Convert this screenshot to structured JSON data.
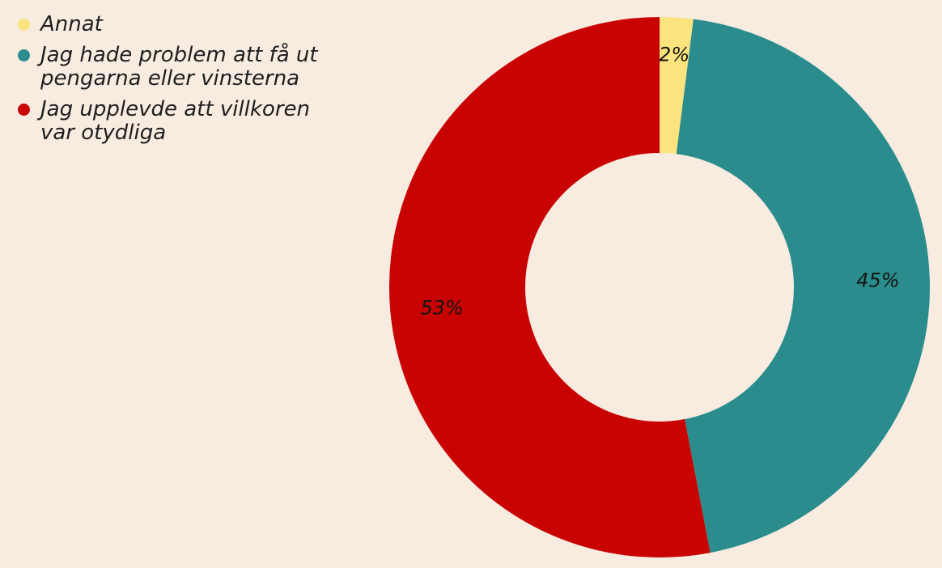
{
  "page": {
    "background": "#F8ECE1"
  },
  "legend": {
    "items": [
      {
        "label": "Annat",
        "color": "#FBE37E"
      },
      {
        "label": "Jag hade problem att få ut\npengarna eller vinsterna",
        "color": "#2A8C8C"
      },
      {
        "label": "Jag upplevde att villkoren\nvar otydliga",
        "color": "#C90202"
      }
    ]
  },
  "chart_data": {
    "type": "pie",
    "hole": 0.5,
    "direction": "clockwise",
    "start_angle": "top",
    "categories": [
      "Annat",
      "Jag hade problem att få ut pengarna eller vinsterna",
      "Jag upplevde att villkoren var otydliga"
    ],
    "values": [
      2,
      45,
      53
    ],
    "unit": "%",
    "slice_labels": [
      "2%",
      "45%",
      "53%"
    ],
    "colors": [
      "#FBE37E",
      "#2A8C8C",
      "#C90202"
    ],
    "label_color": "#151515",
    "legend_position": "top-left",
    "background": "#F8ECE1",
    "title": "",
    "xlabel": "",
    "ylabel": ""
  }
}
